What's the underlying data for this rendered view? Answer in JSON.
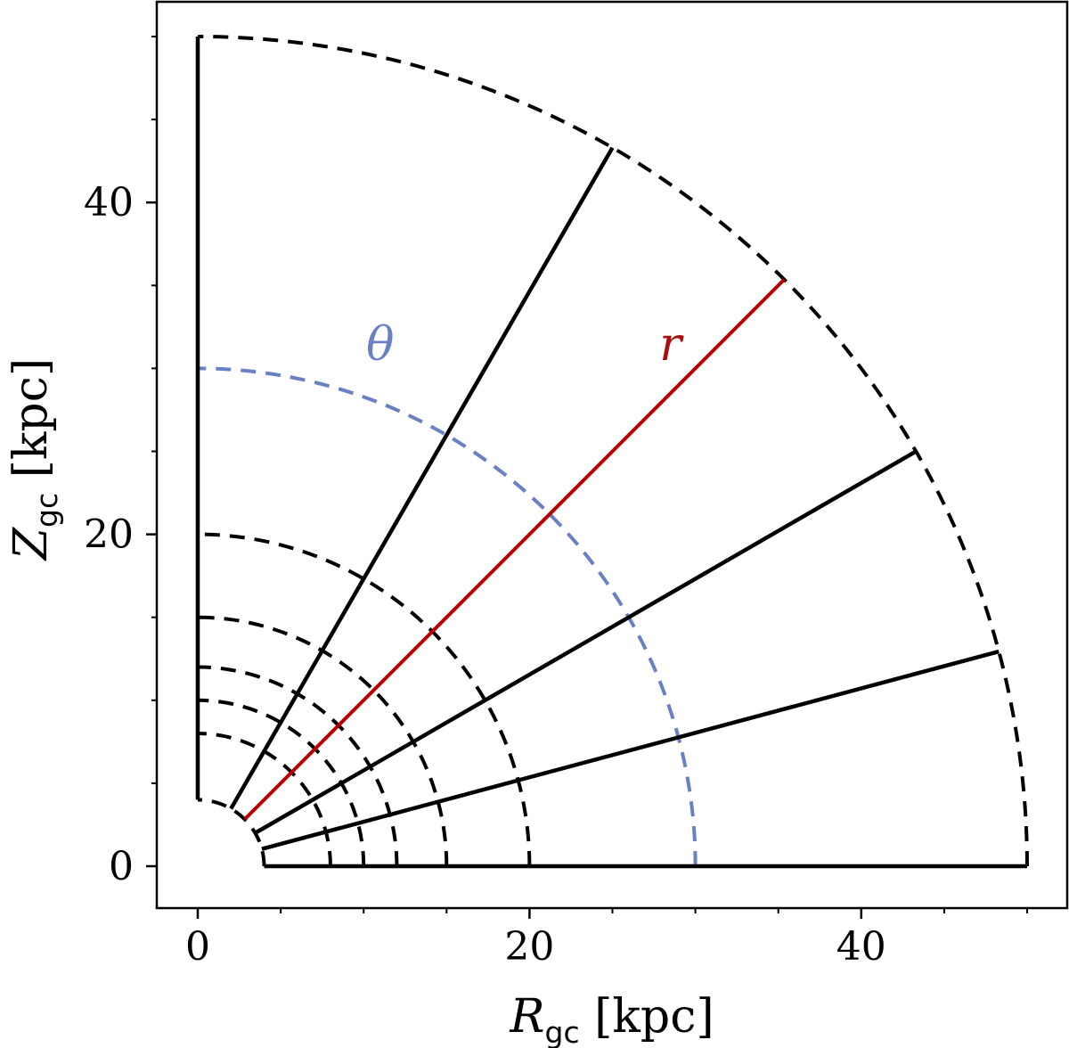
{
  "chart_data": {
    "type": "diagram",
    "title": "",
    "xlabel": {
      "main": "R",
      "sub": "gc",
      "unit": " [kpc]"
    },
    "ylabel": {
      "main": "Z",
      "sub": "gc",
      "unit": " [kpc]"
    },
    "xlim": [
      -2.5,
      52.5
    ],
    "ylim": [
      -2.5,
      52.5
    ],
    "xticks_major": [
      0,
      20,
      40
    ],
    "yticks_major": [
      0,
      20,
      40
    ],
    "xticks_minor": [
      5,
      10,
      15,
      25,
      30,
      35,
      45,
      50
    ],
    "yticks_minor": [
      5,
      10,
      15,
      25,
      30,
      35,
      45,
      50
    ],
    "outer_radius": 50,
    "inner_radius": 4,
    "shell_radii": [
      8,
      10,
      12,
      15,
      20
    ],
    "radial_line_angles_deg": [
      15,
      30,
      45,
      60
    ],
    "highlight_radius_angle_deg": 45,
    "theta_arc_radius": 30,
    "annotations": [
      {
        "text": "θ",
        "x": 11,
        "y": 30.5,
        "color": "#6a80c4"
      },
      {
        "text": "r",
        "x": 28.5,
        "y": 30.5,
        "color": "#a50f0f"
      }
    ],
    "colors": {
      "black": "#000000",
      "r_line": "#b30000",
      "theta_arc": "#6a80c4"
    }
  }
}
